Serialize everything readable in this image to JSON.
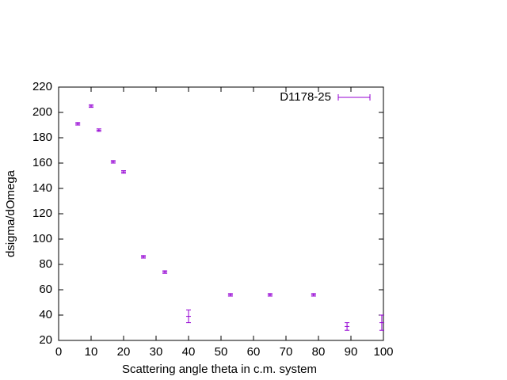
{
  "chart_data": {
    "type": "scatter",
    "x_label": "Scattering angle theta in c.m. system",
    "y_label": "dsigma/dOmega",
    "xlim": [
      0,
      100
    ],
    "ylim": [
      20,
      220
    ],
    "xticks": [
      0,
      10,
      20,
      30,
      40,
      50,
      60,
      70,
      80,
      90,
      100
    ],
    "yticks": [
      20,
      40,
      60,
      80,
      100,
      120,
      140,
      160,
      180,
      200,
      220
    ],
    "grid": false,
    "legend": "top-right",
    "series": [
      {
        "name": "D1178-25",
        "color": "#9400d3",
        "x": [
          5.9,
          10.0,
          12.4,
          16.8,
          20.0,
          26.1,
          32.7,
          40.0,
          52.9,
          65.1,
          78.5,
          88.8,
          99.5
        ],
        "values": [
          191,
          205,
          186,
          161,
          153,
          86,
          74,
          39,
          56,
          56,
          56,
          31,
          34
        ],
        "errors": [
          1,
          1,
          1,
          1,
          1,
          1,
          1,
          5,
          1,
          1,
          1,
          3,
          6
        ]
      }
    ]
  }
}
